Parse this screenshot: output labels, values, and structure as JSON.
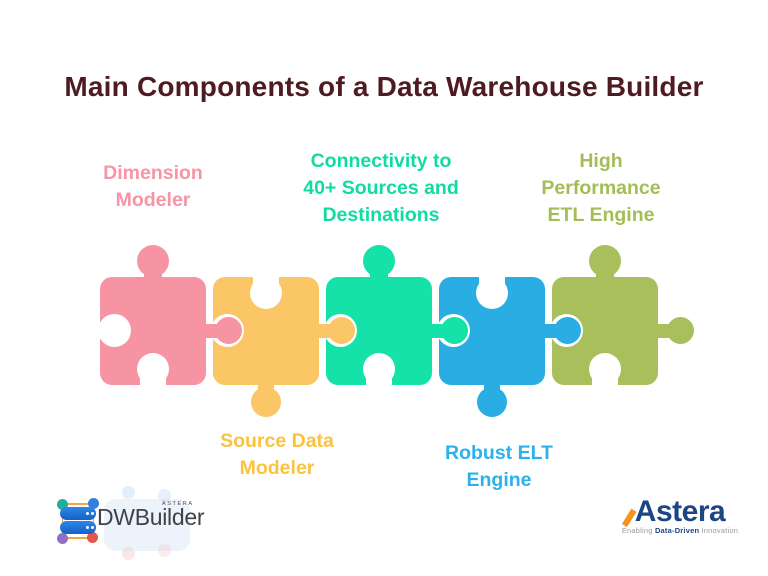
{
  "title": "Main Components of a Data Warehouse Builder",
  "title_color": "#4E1B21",
  "background_color": "#FFFFFF",
  "pieces": [
    {
      "id": "dimension-modeler",
      "label": "Dimension\nModeler",
      "color": "#F794A4",
      "label_color": "#F894A6",
      "label_position": "top"
    },
    {
      "id": "source-data-modeler",
      "label": "Source Data\nModeler",
      "color": "#FBC665",
      "label_color": "#FBC23E",
      "label_position": "bottom"
    },
    {
      "id": "connectivity",
      "label": "Connectivity to\n40+ Sources and\nDestinations",
      "color": "#14E2A8",
      "label_color": "#10DCA2",
      "label_position": "top"
    },
    {
      "id": "robust-elt-engine",
      "label": "Robust ELT\nEngine",
      "color": "#29ADE3",
      "label_color": "#2BB2EE",
      "label_position": "bottom"
    },
    {
      "id": "high-performance-etl-engine",
      "label": "High\nPerformance\nETL Engine",
      "color": "#A8BF5C",
      "label_color": "#A5BD55",
      "label_position": "top"
    }
  ],
  "footer": {
    "dwbuilder": {
      "name": "DWBuilder",
      "sub": "ASTERA",
      "icon_colors": {
        "database": "#1B6FD6",
        "node_teal": "#23AE9C",
        "node_blue": "#2F80E0",
        "node_purple": "#8F70C9",
        "node_red": "#E2574B",
        "lines": "#F2A63B"
      }
    },
    "astera": {
      "name": "Astera",
      "name_color": "#1C4584",
      "accent_color": "#F7941E",
      "tagline_prefix": "Enabling ",
      "tagline_bold": "Data-Driven",
      "tagline_suffix": " Innovation"
    }
  }
}
